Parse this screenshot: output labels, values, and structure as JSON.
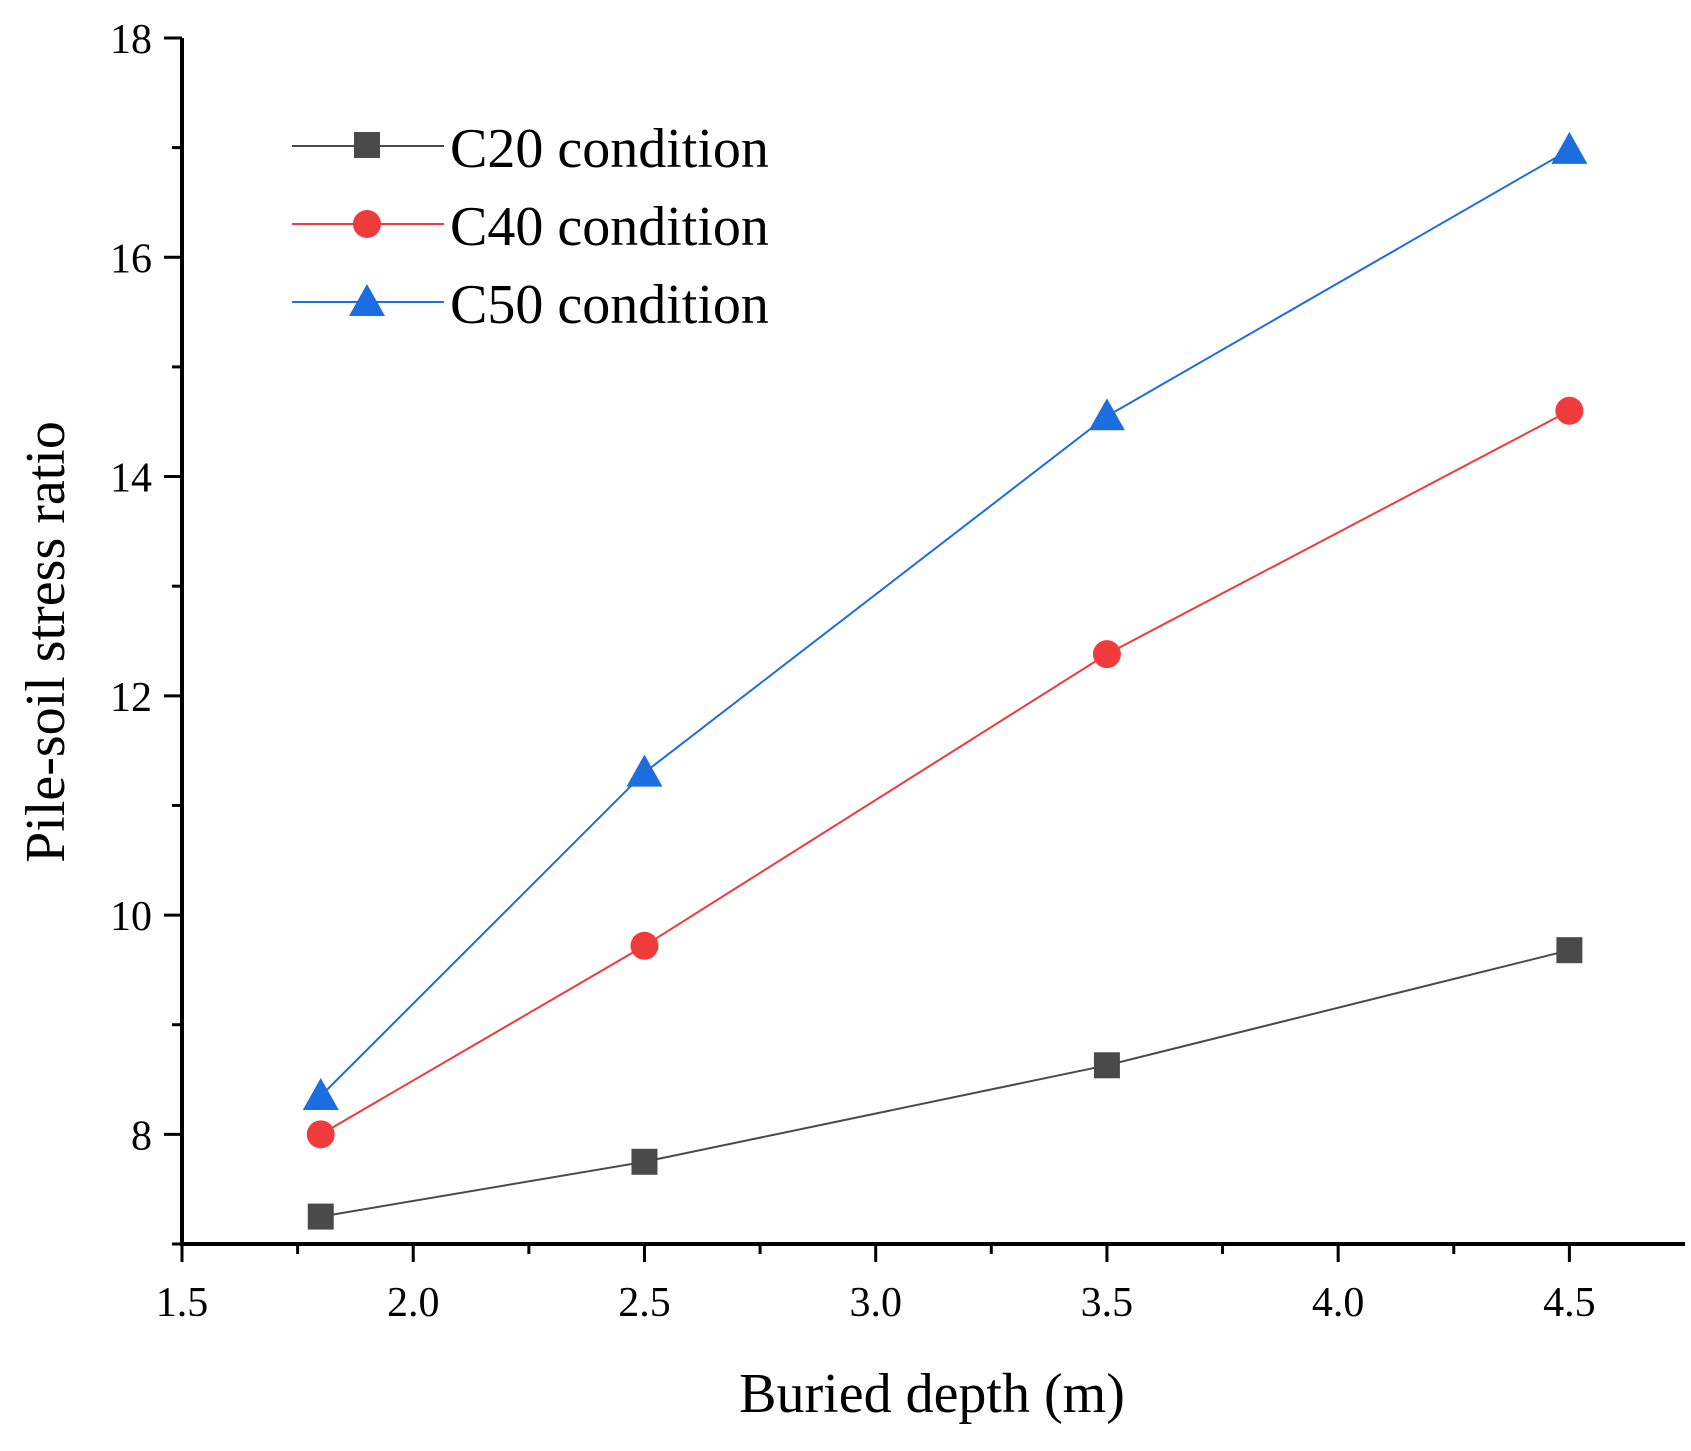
{
  "chart_data": {
    "type": "line",
    "title": "",
    "xlabel": "Buried depth (m)",
    "ylabel": "Pile-soil stress ratio",
    "xlim": [
      1.5,
      4.75
    ],
    "ylim": [
      7.0,
      18.0
    ],
    "x_major_ticks": [
      1.5,
      2.0,
      2.5,
      3.0,
      3.5,
      4.0,
      4.5
    ],
    "x_tick_labels": [
      "1.5",
      "2.0",
      "2.5",
      "3.0",
      "3.5",
      "4.0",
      "4.5"
    ],
    "y_major_ticks": [
      8,
      10,
      12,
      14,
      16,
      18
    ],
    "y_tick_labels": [
      "8",
      "10",
      "12",
      "14",
      "16",
      "18"
    ],
    "grid": false,
    "legend_position": "top-left",
    "x": [
      1.8,
      2.5,
      3.5,
      4.5
    ],
    "series": [
      {
        "name": "C20 condition",
        "marker": "square",
        "color": "#4a4a4a",
        "values": [
          7.25,
          7.75,
          8.63,
          9.68
        ]
      },
      {
        "name": "C40 condition",
        "marker": "circle",
        "color": "#ef3b3b",
        "values": [
          8.0,
          9.72,
          12.38,
          14.6
        ]
      },
      {
        "name": "C50 condition",
        "marker": "triangle",
        "color": "#1c6de0",
        "values": [
          8.35,
          11.3,
          14.55,
          16.98
        ]
      }
    ]
  }
}
